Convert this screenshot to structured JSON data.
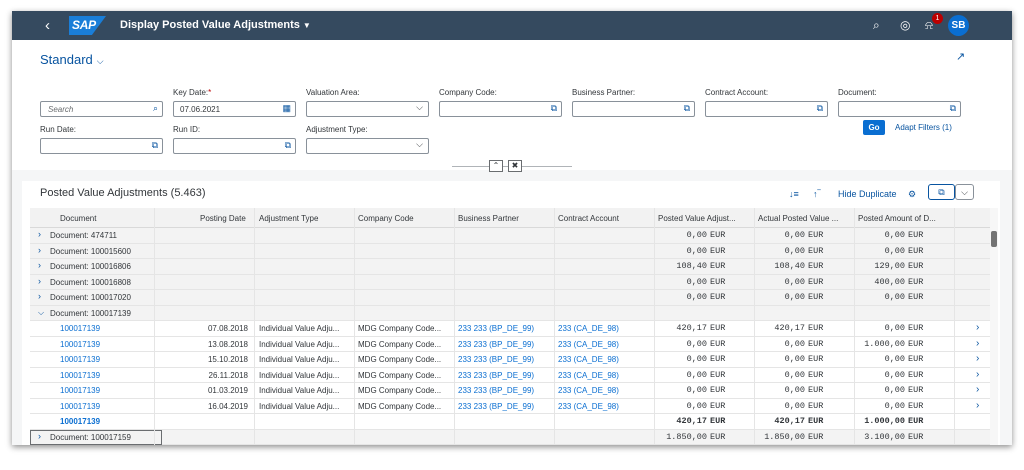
{
  "shell": {
    "title": "Display Posted Value Adjustments",
    "logo": "SAP",
    "notification_count": "1",
    "user_initials": "SB",
    "back_icon": "back-icon",
    "search_icon": "search-icon",
    "help_icon": "help-icon",
    "bell_icon": "bell-icon"
  },
  "filter": {
    "variant": "Standard",
    "search_placeholder": "Search",
    "key_date_label": "Key Date:",
    "key_date_required": "*",
    "key_date_value": "07.06.2021",
    "valuation_area_label": "Valuation Area:",
    "company_code_label": "Company Code:",
    "business_partner_label": "Business Partner:",
    "contract_account_label": "Contract Account:",
    "document_label": "Document:",
    "run_date_label": "Run Date:",
    "run_id_label": "Run ID:",
    "adjustment_type_label": "Adjustment Type:",
    "go_label": "Go",
    "adapt_filters_label": "Adapt Filters (1)"
  },
  "table": {
    "title": "Posted Value Adjustments (5.463)",
    "hide_duplicate_label": "Hide Duplicate",
    "columns": [
      "Document",
      "Posting Date",
      "Adjustment Type",
      "Company Code",
      "Business Partner",
      "Contract Account",
      "Posted Value Adjust...",
      "Actual Posted Value ...",
      "Posted Amount of D..."
    ],
    "group_rows": [
      {
        "label": "Document: 474711",
        "pv": "0,00",
        "pvc": "EUR",
        "apv": "0,00",
        "apvc": "EUR",
        "pa": "0,00",
        "pac": "EUR"
      },
      {
        "label": "Document: 100015600",
        "pv": "0,00",
        "pvc": "EUR",
        "apv": "0,00",
        "apvc": "EUR",
        "pa": "0,00",
        "pac": "EUR"
      },
      {
        "label": "Document: 100016806",
        "pv": "108,40",
        "pvc": "EUR",
        "apv": "108,40",
        "apvc": "EUR",
        "pa": "129,00",
        "pac": "EUR"
      },
      {
        "label": "Document: 100016808",
        "pv": "0,00",
        "pvc": "EUR",
        "apv": "0,00",
        "apvc": "EUR",
        "pa": "400,00",
        "pac": "EUR"
      },
      {
        "label": "Document: 100017020",
        "pv": "0,00",
        "pvc": "EUR",
        "apv": "0,00",
        "apvc": "EUR",
        "pa": "0,00",
        "pac": "EUR"
      },
      {
        "label": "Document: 100017139"
      }
    ],
    "detail_rows": [
      {
        "doc": "100017139",
        "date": "07.08.2018",
        "type": "Individual Value Adju...",
        "cc": "MDG Company Code...",
        "bp": "233 233 (BP_DE_99)",
        "ca": "233 (CA_DE_98)",
        "pv": "420,17",
        "pvc": "EUR",
        "apv": "420,17",
        "apvc": "EUR",
        "pa": "0,00",
        "pac": "EUR"
      },
      {
        "doc": "100017139",
        "date": "13.08.2018",
        "type": "Individual Value Adju...",
        "cc": "MDG Company Code...",
        "bp": "233 233 (BP_DE_99)",
        "ca": "233 (CA_DE_98)",
        "pv": "0,00",
        "pvc": "EUR",
        "apv": "0,00",
        "apvc": "EUR",
        "pa": "1.000,00",
        "pac": "EUR"
      },
      {
        "doc": "100017139",
        "date": "15.10.2018",
        "type": "Individual Value Adju...",
        "cc": "MDG Company Code...",
        "bp": "233 233 (BP_DE_99)",
        "ca": "233 (CA_DE_98)",
        "pv": "0,00",
        "pvc": "EUR",
        "apv": "0,00",
        "apvc": "EUR",
        "pa": "0,00",
        "pac": "EUR"
      },
      {
        "doc": "100017139",
        "date": "26.11.2018",
        "type": "Individual Value Adju...",
        "cc": "MDG Company Code...",
        "bp": "233 233 (BP_DE_99)",
        "ca": "233 (CA_DE_98)",
        "pv": "0,00",
        "pvc": "EUR",
        "apv": "0,00",
        "apvc": "EUR",
        "pa": "0,00",
        "pac": "EUR"
      },
      {
        "doc": "100017139",
        "date": "01.03.2019",
        "type": "Individual Value Adju...",
        "cc": "MDG Company Code...",
        "bp": "233 233 (BP_DE_99)",
        "ca": "233 (CA_DE_98)",
        "pv": "0,00",
        "pvc": "EUR",
        "apv": "0,00",
        "apvc": "EUR",
        "pa": "0,00",
        "pac": "EUR"
      },
      {
        "doc": "100017139",
        "date": "16.04.2019",
        "type": "Individual Value Adju...",
        "cc": "MDG Company Code...",
        "bp": "233 233 (BP_DE_99)",
        "ca": "233 (CA_DE_98)",
        "pv": "0,00",
        "pvc": "EUR",
        "apv": "0,00",
        "apvc": "EUR",
        "pa": "0,00",
        "pac": "EUR"
      }
    ],
    "subtotal": {
      "doc": "100017139",
      "pv": "420,17",
      "pvc": "EUR",
      "apv": "420,17",
      "apvc": "EUR",
      "pa": "1.000,00",
      "pac": "EUR"
    },
    "last_group": {
      "label": "Document: 100017159",
      "pv": "1.850,00",
      "pvc": "EUR",
      "apv": "1.850,00",
      "apvc": "EUR",
      "pa": "3.100,00",
      "pac": "EUR"
    }
  }
}
